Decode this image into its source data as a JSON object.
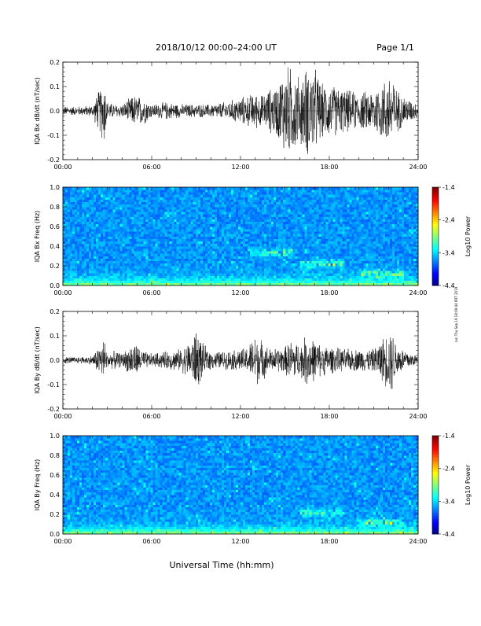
{
  "page": {
    "title": "2018/10/12  00:00–24:00 UT",
    "page_label": "Page 1/1",
    "xlabel": "Universal Time (hh:mm)",
    "side_note": "run Thu Sep 19 18:09:44 PDT 2019"
  },
  "chart_data": [
    {
      "type": "line",
      "title": "",
      "ylabel": "IQA Bx dB/dt (nT/sec)",
      "xlabel": "",
      "x_range_hours": [
        0,
        24
      ],
      "x_ticks": [
        "00:00",
        "06:00",
        "12:00",
        "18:00",
        "24:00"
      ],
      "ylim": [
        -0.2,
        0.2
      ],
      "y_ticks": [
        "-0.2",
        "-0.1",
        "0.0",
        "0.1",
        "0.2"
      ],
      "series": [
        {
          "x": [
            0,
            1,
            2,
            2.8,
            3,
            3.5,
            4,
            4.8,
            5.5,
            6,
            7,
            8,
            9,
            10,
            11,
            12,
            12.5,
            13,
            13.5,
            14,
            14.5,
            15,
            15.5,
            16,
            16.5,
            17,
            17.5,
            18,
            19,
            20,
            21,
            22,
            22.2,
            22.5,
            23,
            24
          ],
          "amplitude": [
            0.02,
            0.02,
            0.025,
            0.15,
            0.04,
            0.03,
            0.03,
            0.07,
            0.06,
            0.03,
            0.04,
            0.03,
            0.03,
            0.03,
            0.04,
            0.06,
            0.07,
            0.08,
            0.07,
            0.1,
            0.12,
            0.2,
            0.2,
            0.15,
            0.2,
            0.2,
            0.12,
            0.12,
            0.1,
            0.08,
            0.1,
            0.16,
            0.2,
            0.1,
            0.07,
            0.03
          ]
        }
      ]
    },
    {
      "type": "heatmap",
      "title": "",
      "ylabel": "IQA Bx Freq (Hz)",
      "x_range_hours": [
        0,
        24
      ],
      "x_ticks": [
        "00:00",
        "06:00",
        "12:00",
        "18:00",
        "24:00"
      ],
      "ylim": [
        0.0,
        1.0
      ],
      "y_ticks": [
        "0.0",
        "0.2",
        "0.4",
        "0.6",
        "0.8",
        "1.0"
      ],
      "colorbar": {
        "label": "Log10 Power",
        "range": [
          -4.4,
          -1.4
        ],
        "ticks": [
          "-1.4",
          "-2.4",
          "-3.4",
          "-4.4"
        ]
      },
      "features": [
        {
          "t_start": 12.5,
          "t_end": 15.5,
          "freq": 0.34,
          "strength": 0.55
        },
        {
          "t_start": 16,
          "t_end": 19,
          "freq": 0.22,
          "strength": 0.6
        },
        {
          "t_start": 20,
          "t_end": 23,
          "freq": 0.12,
          "strength": 0.7
        }
      ]
    },
    {
      "type": "line",
      "title": "",
      "ylabel": "IQA By dB/dt (nT/sec)",
      "x_range_hours": [
        0,
        24
      ],
      "x_ticks": [
        "00:00",
        "06:00",
        "12:00",
        "18:00",
        "24:00"
      ],
      "ylim": [
        -0.2,
        0.2
      ],
      "y_ticks": [
        "-0.2",
        "-0.1",
        "0.0",
        "0.1",
        "0.2"
      ],
      "series": [
        {
          "x": [
            0,
            1,
            2,
            2.8,
            3,
            3.5,
            4,
            4.8,
            5.5,
            6,
            7,
            8,
            8.8,
            9,
            9.5,
            10,
            11,
            12,
            12.5,
            13,
            14,
            15,
            15.5,
            16,
            16.5,
            17,
            17.5,
            18,
            19,
            20,
            21,
            22,
            22.2,
            22.5,
            23,
            24
          ],
          "amplitude": [
            0.015,
            0.015,
            0.02,
            0.1,
            0.03,
            0.04,
            0.03,
            0.08,
            0.04,
            0.03,
            0.04,
            0.05,
            0.1,
            0.14,
            0.07,
            0.04,
            0.04,
            0.05,
            0.06,
            0.12,
            0.05,
            0.06,
            0.1,
            0.07,
            0.12,
            0.09,
            0.07,
            0.06,
            0.05,
            0.05,
            0.05,
            0.13,
            0.15,
            0.08,
            0.05,
            0.02
          ]
        }
      ]
    },
    {
      "type": "heatmap",
      "title": "",
      "ylabel": "IQA By Freq (Hz)",
      "x_range_hours": [
        0,
        24
      ],
      "x_ticks": [
        "00:00",
        "06:00",
        "12:00",
        "18:00",
        "24:00"
      ],
      "ylim": [
        0.0,
        1.0
      ],
      "y_ticks": [
        "0.0",
        "0.2",
        "0.4",
        "0.6",
        "0.8",
        "1.0"
      ],
      "colorbar": {
        "label": "Log10 Power",
        "range": [
          -4.4,
          -1.4
        ],
        "ticks": [
          "-1.4",
          "-2.4",
          "-3.4",
          "-4.4"
        ]
      },
      "features": [
        {
          "t_start": 16,
          "t_end": 19,
          "freq": 0.22,
          "strength": 0.55
        },
        {
          "t_start": 20,
          "t_end": 23,
          "freq": 0.12,
          "strength": 0.6
        }
      ]
    }
  ]
}
